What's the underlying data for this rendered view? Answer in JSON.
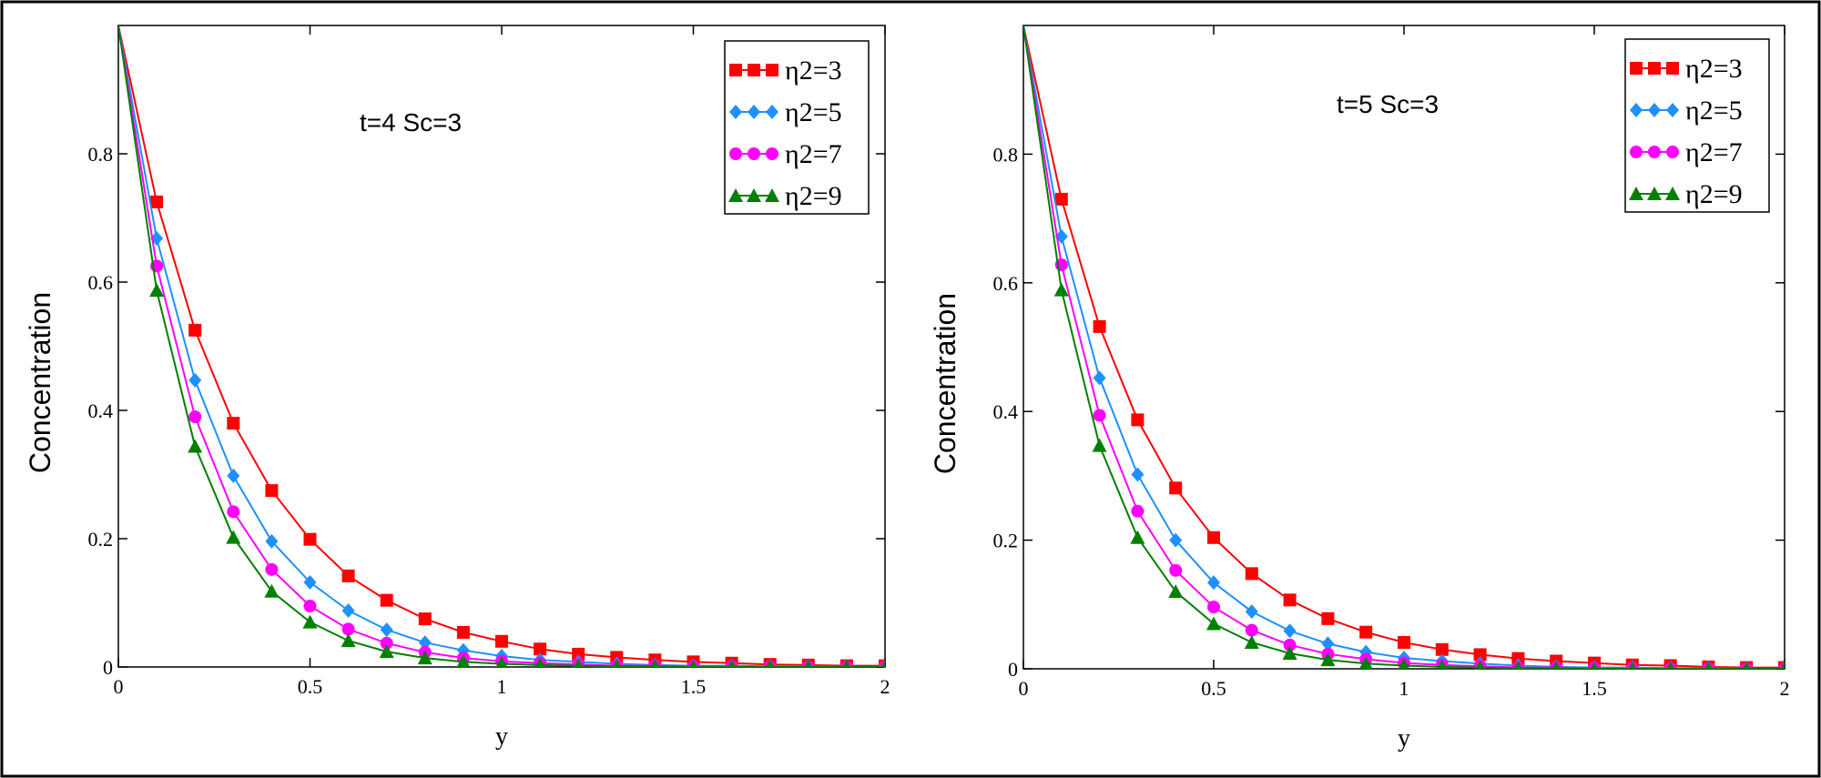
{
  "chart_data": [
    {
      "type": "line",
      "xlabel": "y",
      "ylabel": "Concentration",
      "annotation": "t=4    Sc=3",
      "xlim": [
        0,
        2
      ],
      "ylim": [
        0,
        1
      ],
      "xticks": [
        0,
        0.5,
        1,
        1.5,
        2
      ],
      "xtick_labels": [
        "0",
        "0.5",
        "1",
        "1.5",
        "2"
      ],
      "yticks": [
        0,
        0.2,
        0.4,
        0.6,
        0.8
      ],
      "ytick_labels": [
        "0",
        "0.2",
        "0.4",
        "0.6",
        "0.8"
      ],
      "grid": false,
      "legend": "top-right",
      "x": [
        0,
        0.1,
        0.2,
        0.3,
        0.4,
        0.5,
        0.6,
        0.7,
        0.8,
        0.9,
        1.0,
        1.1,
        1.2,
        1.3,
        1.4,
        1.5,
        1.6,
        1.7,
        1.8,
        1.9,
        2.0
      ],
      "series": [
        {
          "name": "η2=3",
          "color": "#ff0000",
          "marker": "square",
          "values": [
            1.0,
            0.725,
            0.525,
            0.38,
            0.275,
            0.199,
            0.142,
            0.104,
            0.075,
            0.054,
            0.04,
            0.028,
            0.02,
            0.015,
            0.011,
            0.008,
            0.006,
            0.004,
            0.003,
            0.002,
            0.002
          ]
        },
        {
          "name": "η2=5",
          "color": "#1e90ff",
          "marker": "diamond",
          "values": [
            1.0,
            0.668,
            0.447,
            0.298,
            0.196,
            0.132,
            0.088,
            0.058,
            0.038,
            0.026,
            0.017,
            0.011,
            0.008,
            0.005,
            0.003,
            0.002,
            0.002,
            0.001,
            0.001,
            0.0,
            0.0
          ]
        },
        {
          "name": "η2=7",
          "color": "#ff00ff",
          "marker": "circle",
          "values": [
            1.0,
            0.625,
            0.39,
            0.242,
            0.152,
            0.095,
            0.059,
            0.037,
            0.023,
            0.014,
            0.009,
            0.006,
            0.004,
            0.002,
            0.002,
            0.001,
            0.001,
            0.0,
            0.0,
            0.0,
            0.0
          ]
        },
        {
          "name": "η2=9",
          "color": "#008000",
          "marker": "triangle",
          "values": [
            1.0,
            0.587,
            0.344,
            0.202,
            0.118,
            0.07,
            0.041,
            0.024,
            0.014,
            0.008,
            0.005,
            0.003,
            0.002,
            0.001,
            0.001,
            0.0,
            0.0,
            0.0,
            0.0,
            0.0,
            0.0
          ]
        }
      ]
    },
    {
      "type": "line",
      "xlabel": "y",
      "ylabel": "Concentration",
      "annotation": "t=5    Sc=3",
      "xlim": [
        0,
        2
      ],
      "ylim": [
        0,
        1
      ],
      "xticks": [
        0,
        0.5,
        1,
        1.5,
        2
      ],
      "xtick_labels": [
        "0",
        "0.5",
        "1",
        "1.5",
        "2"
      ],
      "yticks": [
        0,
        0.2,
        0.4,
        0.6,
        0.8
      ],
      "ytick_labels": [
        "0",
        "0.2",
        "0.4",
        "0.6",
        "0.8"
      ],
      "grid": false,
      "legend": "top-right",
      "x": [
        0,
        0.1,
        0.2,
        0.3,
        0.4,
        0.5,
        0.6,
        0.7,
        0.8,
        0.9,
        1.0,
        1.1,
        1.2,
        1.3,
        1.4,
        1.5,
        1.6,
        1.7,
        1.8,
        1.9,
        2.0
      ],
      "series": [
        {
          "name": "η2=3",
          "color": "#ff0000",
          "marker": "square",
          "values": [
            1.0,
            0.73,
            0.532,
            0.387,
            0.281,
            0.204,
            0.148,
            0.107,
            0.078,
            0.057,
            0.041,
            0.03,
            0.022,
            0.016,
            0.012,
            0.009,
            0.006,
            0.005,
            0.003,
            0.002,
            0.002
          ]
        },
        {
          "name": "η2=5",
          "color": "#1e90ff",
          "marker": "diamond",
          "values": [
            1.0,
            0.672,
            0.452,
            0.302,
            0.2,
            0.134,
            0.089,
            0.059,
            0.039,
            0.026,
            0.017,
            0.012,
            0.008,
            0.005,
            0.003,
            0.002,
            0.002,
            0.001,
            0.001,
            0.0,
            0.0
          ]
        },
        {
          "name": "η2=7",
          "color": "#ff00ff",
          "marker": "circle",
          "values": [
            1.0,
            0.628,
            0.394,
            0.245,
            0.153,
            0.096,
            0.06,
            0.037,
            0.023,
            0.015,
            0.009,
            0.006,
            0.004,
            0.002,
            0.002,
            0.001,
            0.001,
            0.0,
            0.0,
            0.0,
            0.0
          ]
        },
        {
          "name": "η2=9",
          "color": "#008000",
          "marker": "triangle",
          "values": [
            1.0,
            0.589,
            0.347,
            0.204,
            0.12,
            0.07,
            0.041,
            0.024,
            0.014,
            0.008,
            0.005,
            0.003,
            0.002,
            0.001,
            0.001,
            0.0,
            0.0,
            0.0,
            0.0,
            0.0,
            0.0
          ]
        }
      ]
    }
  ]
}
